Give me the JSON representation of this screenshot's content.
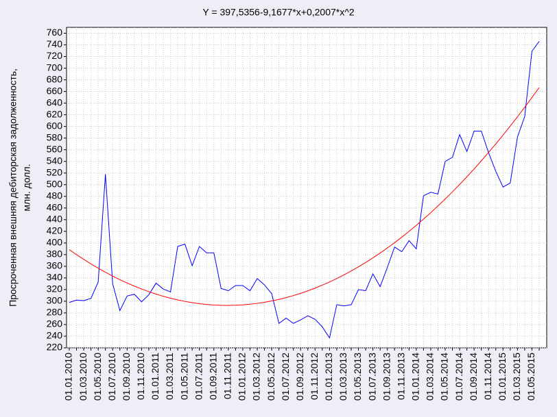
{
  "chart_data": {
    "type": "line",
    "title": "Y = 397,5356-9,1677*x+0,2007*x^2",
    "ylabel": [
      "Просроченная внешняя дебиторская задолженность,",
      "млн. долл."
    ],
    "categories": [
      "01.01.2010",
      null,
      "01.03.2010",
      null,
      "01.05.2010",
      null,
      "01.07.2010",
      null,
      "01.09.2010",
      null,
      "01.11.2010",
      null,
      "01.01.2011",
      null,
      "01.03.2011",
      null,
      "01.05.2011",
      null,
      "01.07.2011",
      null,
      "01.09.2011",
      null,
      "01.11.2011",
      null,
      "01.01.2012",
      null,
      "01.03.2012",
      null,
      "01.05.2012",
      null,
      "01.07.2012",
      null,
      "01.09.2012",
      null,
      "01.11.2012",
      null,
      "01.01.2013",
      null,
      "01.03.2013",
      null,
      "01.05.2013",
      null,
      "01.07.2013",
      null,
      "01.09.2013",
      null,
      "01.11.2013",
      null,
      "01.01.2014",
      null,
      "01.03.2014",
      null,
      "01.05.2014",
      null,
      "01.07.2014",
      null,
      "01.09.2014",
      null,
      "01.11.2014",
      null,
      "01.01.2015",
      null,
      "01.03.2015",
      null,
      "01.05.2015",
      null
    ],
    "series": [
      {
        "color": "#0000ff",
        "values": [
          298,
          302,
          301,
          305,
          333,
          518,
          330,
          284,
          309,
          312,
          299,
          311,
          331,
          321,
          316,
          394,
          398,
          361,
          394,
          383,
          383,
          322,
          318,
          327,
          327,
          318,
          339,
          328,
          313,
          262,
          271,
          262,
          268,
          275,
          269,
          256,
          237,
          294,
          292,
          294,
          320,
          318,
          347,
          325,
          358,
          393,
          385,
          404,
          390,
          481,
          487,
          484,
          540,
          547,
          586,
          557,
          592,
          592,
          555,
          523,
          496,
          503,
          582,
          617,
          729,
          746
        ]
      },
      {
        "color": "#ff0000",
        "values": [
          388.57,
          380.0,
          371.84,
          364.08,
          356.71,
          349.75,
          343.2,
          337.04,
          331.28,
          325.93,
          320.98,
          316.42,
          312.27,
          308.53,
          305.18,
          302.23,
          299.69,
          297.54,
          295.8,
          294.46,
          293.52,
          292.99,
          292.85,
          293.11,
          293.78,
          294.85,
          296.32,
          298.19,
          300.46,
          303.13,
          306.21,
          309.69,
          313.56,
          317.84,
          322.52,
          327.61,
          333.09,
          338.97,
          345.26,
          351.95,
          359.04,
          366.53,
          374.42,
          382.71,
          391.41,
          400.5,
          410.0,
          419.9,
          430.2,
          440.9,
          452.0,
          463.51,
          475.41,
          487.72,
          500.43,
          513.54,
          527.05,
          540.96,
          555.28,
          569.99,
          585.11,
          600.63,
          616.55,
          632.87,
          649.59,
          666.72
        ]
      }
    ],
    "ylim": [
      220,
      770
    ],
    "yticks": [
      220,
      240,
      260,
      280,
      300,
      320,
      340,
      360,
      380,
      400,
      420,
      440,
      460,
      480,
      500,
      520,
      540,
      560,
      580,
      600,
      620,
      640,
      660,
      680,
      700,
      720,
      740,
      760
    ],
    "grid": true
  }
}
